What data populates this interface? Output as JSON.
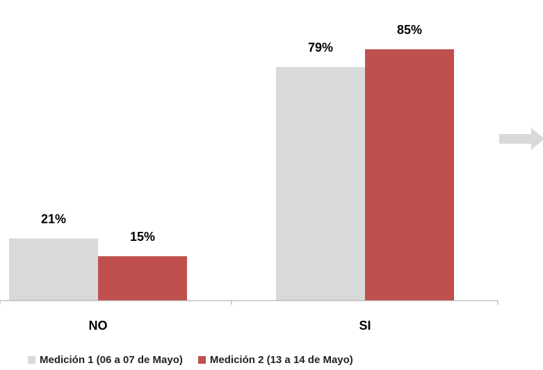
{
  "chart_data": {
    "type": "bar",
    "categories": [
      "NO",
      "SI"
    ],
    "series": [
      {
        "name": "Medición 1 (06 a 07 de Mayo)",
        "values": [
          21,
          79
        ],
        "labels": [
          "21%",
          "79%"
        ],
        "color": "#d9d9d9"
      },
      {
        "name": "Medición 2 (13 a 14 de Mayo)",
        "values": [
          15,
          85
        ],
        "labels": [
          "15%",
          "85%"
        ],
        "color": "#c0504d"
      }
    ],
    "ylim": [
      0,
      100
    ],
    "grid": false,
    "legend": "bottom",
    "annotation_arrow_color": "#d9d9d9"
  }
}
